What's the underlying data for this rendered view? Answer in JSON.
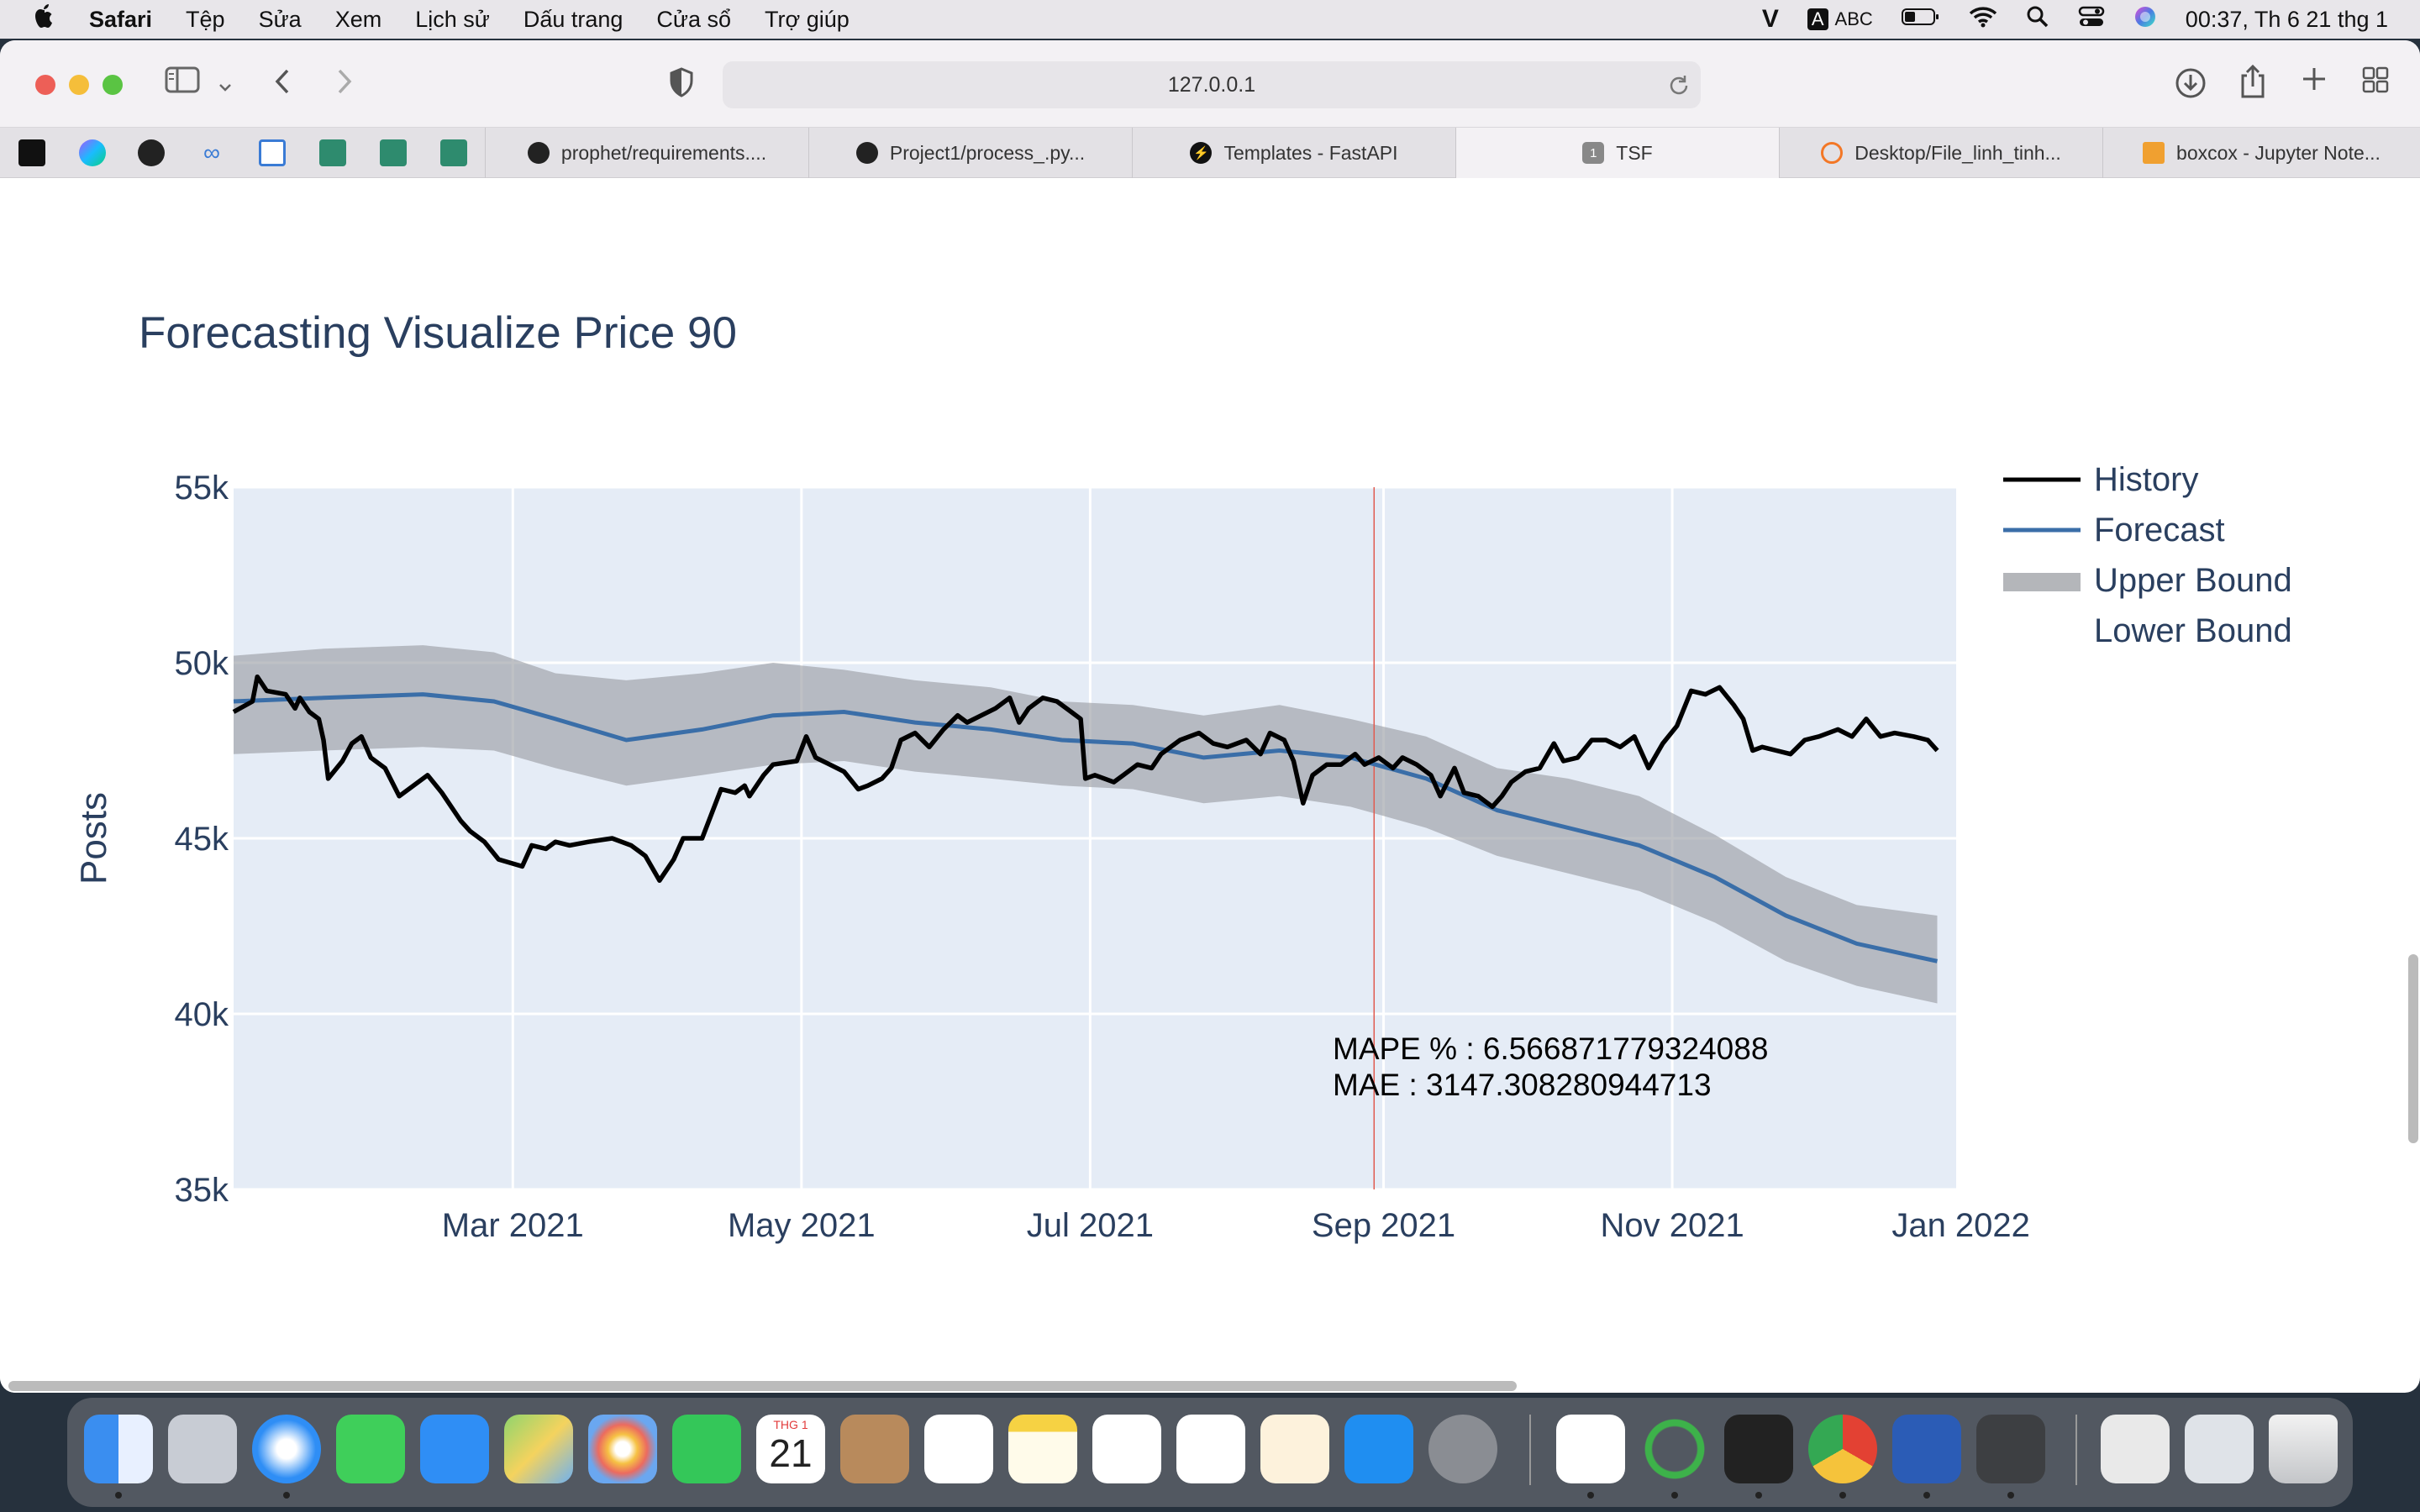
{
  "menubar": {
    "app": "Safari",
    "items": [
      "Tệp",
      "Sửa",
      "Xem",
      "Lịch sử",
      "Dấu trang",
      "Cửa sổ",
      "Trợ giúp"
    ],
    "input_source": "ABC",
    "clock": "00:37, Th 6 21 thg 1"
  },
  "browser": {
    "url": "127.0.0.1",
    "tabs": [
      {
        "label": "prophet/requirements....",
        "icon": "github-icon"
      },
      {
        "label": "Project1/process_.py...",
        "icon": "github-icon"
      },
      {
        "label": "Templates - FastAPI",
        "icon": "fastapi-icon"
      },
      {
        "label": "TSF",
        "icon": "number-badge-icon",
        "badge": "1"
      },
      {
        "label": "Desktop/File_linh_tinh...",
        "icon": "jupyter-icon"
      },
      {
        "label": "boxcox - Jupyter Note...",
        "icon": "notebook-icon"
      }
    ]
  },
  "dock": {
    "calendar_month": "THG 1",
    "calendar_day": "21"
  },
  "chart_data": {
    "type": "line",
    "title": "Forecasting Visualize Price 90",
    "xlabel": "",
    "ylabel": "Posts",
    "ylim": [
      35000,
      55000
    ],
    "xlim": [
      "2021-01-01",
      "2021-12-31"
    ],
    "y_ticks": [
      {
        "value": 55000,
        "label": "55k"
      },
      {
        "value": 50000,
        "label": "50k"
      },
      {
        "value": 45000,
        "label": "45k"
      },
      {
        "value": 40000,
        "label": "40k"
      },
      {
        "value": 35000,
        "label": "35k"
      }
    ],
    "x_ticks": [
      {
        "value": "2021-03-01",
        "label": "Mar 2021"
      },
      {
        "value": "2021-05-01",
        "label": "May 2021"
      },
      {
        "value": "2021-07-01",
        "label": "Jul 2021"
      },
      {
        "value": "2021-09-01",
        "label": "Sep 2021"
      },
      {
        "value": "2021-11-01",
        "label": "Nov 2021"
      },
      {
        "value": "2022-01-01",
        "label": "Jan 2022"
      }
    ],
    "grid": true,
    "legend_position": "right",
    "split_date": "2021-08-30",
    "split_color": "#e05a4f",
    "series": [
      {
        "name": "History",
        "color": "#000000",
        "points": [
          [
            "2021-01-01",
            48600
          ],
          [
            "2021-01-05",
            48900
          ],
          [
            "2021-01-06",
            49600
          ],
          [
            "2021-01-08",
            49200
          ],
          [
            "2021-01-12",
            49100
          ],
          [
            "2021-01-14",
            48700
          ],
          [
            "2021-01-15",
            49000
          ],
          [
            "2021-01-17",
            48600
          ],
          [
            "2021-01-19",
            48400
          ],
          [
            "2021-01-20",
            47800
          ],
          [
            "2021-01-21",
            46700
          ],
          [
            "2021-01-24",
            47200
          ],
          [
            "2021-01-26",
            47700
          ],
          [
            "2021-01-28",
            47900
          ],
          [
            "2021-01-30",
            47300
          ],
          [
            "2021-02-02",
            47000
          ],
          [
            "2021-02-05",
            46200
          ],
          [
            "2021-02-08",
            46500
          ],
          [
            "2021-02-11",
            46800
          ],
          [
            "2021-02-14",
            46300
          ],
          [
            "2021-02-18",
            45500
          ],
          [
            "2021-02-20",
            45200
          ],
          [
            "2021-02-23",
            44900
          ],
          [
            "2021-02-26",
            44400
          ],
          [
            "2021-03-03",
            44200
          ],
          [
            "2021-03-05",
            44800
          ],
          [
            "2021-03-08",
            44700
          ],
          [
            "2021-03-10",
            44900
          ],
          [
            "2021-03-13",
            44800
          ],
          [
            "2021-03-17",
            44900
          ],
          [
            "2021-03-22",
            45000
          ],
          [
            "2021-03-26",
            44800
          ],
          [
            "2021-03-29",
            44500
          ],
          [
            "2021-04-01",
            43800
          ],
          [
            "2021-04-04",
            44400
          ],
          [
            "2021-04-06",
            45000
          ],
          [
            "2021-04-10",
            45000
          ],
          [
            "2021-04-14",
            46400
          ],
          [
            "2021-04-17",
            46300
          ],
          [
            "2021-04-19",
            46500
          ],
          [
            "2021-04-20",
            46200
          ],
          [
            "2021-04-23",
            46800
          ],
          [
            "2021-04-25",
            47100
          ],
          [
            "2021-04-30",
            47200
          ],
          [
            "2021-05-02",
            47900
          ],
          [
            "2021-05-04",
            47300
          ],
          [
            "2021-05-07",
            47100
          ],
          [
            "2021-05-10",
            46900
          ],
          [
            "2021-05-13",
            46400
          ],
          [
            "2021-05-15",
            46500
          ],
          [
            "2021-05-18",
            46700
          ],
          [
            "2021-05-20",
            47000
          ],
          [
            "2021-05-22",
            47800
          ],
          [
            "2021-05-25",
            48000
          ],
          [
            "2021-05-28",
            47600
          ],
          [
            "2021-05-31",
            48100
          ],
          [
            "2021-06-03",
            48500
          ],
          [
            "2021-06-05",
            48300
          ],
          [
            "2021-06-08",
            48500
          ],
          [
            "2021-06-11",
            48700
          ],
          [
            "2021-06-14",
            49000
          ],
          [
            "2021-06-16",
            48300
          ],
          [
            "2021-06-18",
            48700
          ],
          [
            "2021-06-21",
            49000
          ],
          [
            "2021-06-24",
            48900
          ],
          [
            "2021-06-27",
            48600
          ],
          [
            "2021-06-29",
            48400
          ],
          [
            "2021-06-30",
            46700
          ],
          [
            "2021-07-02",
            46800
          ],
          [
            "2021-07-04",
            46700
          ],
          [
            "2021-07-06",
            46600
          ],
          [
            "2021-07-08",
            46800
          ],
          [
            "2021-07-11",
            47100
          ],
          [
            "2021-07-14",
            47000
          ],
          [
            "2021-07-16",
            47400
          ],
          [
            "2021-07-18",
            47600
          ],
          [
            "2021-07-20",
            47800
          ],
          [
            "2021-07-24",
            48000
          ],
          [
            "2021-07-27",
            47700
          ],
          [
            "2021-07-30",
            47600
          ],
          [
            "2021-08-03",
            47800
          ],
          [
            "2021-08-06",
            47400
          ],
          [
            "2021-08-08",
            48000
          ],
          [
            "2021-08-11",
            47800
          ],
          [
            "2021-08-13",
            47200
          ],
          [
            "2021-08-15",
            46000
          ],
          [
            "2021-08-17",
            46800
          ],
          [
            "2021-08-20",
            47100
          ],
          [
            "2021-08-23",
            47100
          ],
          [
            "2021-08-26",
            47400
          ],
          [
            "2021-08-28",
            47100
          ],
          [
            "2021-08-31",
            47300
          ],
          [
            "2021-09-03",
            47000
          ],
          [
            "2021-09-05",
            47300
          ],
          [
            "2021-09-08",
            47100
          ],
          [
            "2021-09-11",
            46800
          ],
          [
            "2021-09-13",
            46200
          ],
          [
            "2021-09-16",
            47000
          ],
          [
            "2021-09-18",
            46300
          ],
          [
            "2021-09-21",
            46200
          ],
          [
            "2021-09-24",
            45900
          ],
          [
            "2021-09-26",
            46200
          ],
          [
            "2021-09-28",
            46600
          ],
          [
            "2021-10-01",
            46900
          ],
          [
            "2021-10-04",
            47000
          ],
          [
            "2021-10-07",
            47700
          ],
          [
            "2021-10-09",
            47200
          ],
          [
            "2021-10-12",
            47300
          ],
          [
            "2021-10-15",
            47800
          ],
          [
            "2021-10-18",
            47800
          ],
          [
            "2021-10-21",
            47600
          ],
          [
            "2021-10-24",
            47900
          ],
          [
            "2021-10-27",
            47000
          ],
          [
            "2021-10-30",
            47700
          ],
          [
            "2021-11-02",
            48200
          ],
          [
            "2021-11-05",
            49200
          ],
          [
            "2021-11-08",
            49100
          ],
          [
            "2021-11-11",
            49300
          ],
          [
            "2021-11-14",
            48800
          ],
          [
            "2021-11-16",
            48400
          ],
          [
            "2021-11-18",
            47500
          ],
          [
            "2021-11-20",
            47600
          ],
          [
            "2021-11-23",
            47500
          ],
          [
            "2021-11-26",
            47400
          ],
          [
            "2021-11-29",
            47800
          ],
          [
            "2021-12-02",
            47900
          ],
          [
            "2021-12-06",
            48100
          ],
          [
            "2021-12-09",
            47900
          ],
          [
            "2021-12-12",
            48400
          ],
          [
            "2021-12-15",
            47900
          ],
          [
            "2021-12-18",
            48000
          ],
          [
            "2021-12-22",
            47900
          ],
          [
            "2021-12-25",
            47800
          ],
          [
            "2021-12-27",
            47500
          ]
        ]
      },
      {
        "name": "Forecast",
        "color": "#3a6ea8",
        "points": [
          [
            "2021-01-01",
            48900
          ],
          [
            "2021-01-20",
            49000
          ],
          [
            "2021-02-10",
            49100
          ],
          [
            "2021-02-25",
            48900
          ],
          [
            "2021-03-10",
            48400
          ],
          [
            "2021-03-25",
            47800
          ],
          [
            "2021-04-10",
            48100
          ],
          [
            "2021-04-25",
            48500
          ],
          [
            "2021-05-10",
            48600
          ],
          [
            "2021-05-25",
            48300
          ],
          [
            "2021-06-10",
            48100
          ],
          [
            "2021-06-25",
            47800
          ],
          [
            "2021-07-10",
            47700
          ],
          [
            "2021-07-25",
            47300
          ],
          [
            "2021-08-10",
            47500
          ],
          [
            "2021-08-25",
            47300
          ],
          [
            "2021-09-10",
            46700
          ],
          [
            "2021-09-25",
            45800
          ],
          [
            "2021-10-10",
            45300
          ],
          [
            "2021-10-25",
            44800
          ],
          [
            "2021-11-10",
            43900
          ],
          [
            "2021-11-25",
            42800
          ],
          [
            "2021-12-10",
            42000
          ],
          [
            "2021-12-27",
            41500
          ]
        ]
      },
      {
        "name": "Upper Bound",
        "color": "#aaaaaa",
        "points": [
          [
            "2021-01-01",
            50200
          ],
          [
            "2021-01-20",
            50400
          ],
          [
            "2021-02-10",
            50500
          ],
          [
            "2021-02-25",
            50300
          ],
          [
            "2021-03-10",
            49700
          ],
          [
            "2021-03-25",
            49500
          ],
          [
            "2021-04-10",
            49700
          ],
          [
            "2021-04-25",
            50000
          ],
          [
            "2021-05-10",
            49800
          ],
          [
            "2021-05-25",
            49500
          ],
          [
            "2021-06-10",
            49300
          ],
          [
            "2021-06-25",
            48900
          ],
          [
            "2021-07-10",
            48800
          ],
          [
            "2021-07-25",
            48500
          ],
          [
            "2021-08-10",
            48800
          ],
          [
            "2021-08-25",
            48400
          ],
          [
            "2021-09-10",
            47900
          ],
          [
            "2021-09-25",
            47000
          ],
          [
            "2021-10-10",
            46700
          ],
          [
            "2021-10-25",
            46200
          ],
          [
            "2021-11-10",
            45100
          ],
          [
            "2021-11-25",
            43900
          ],
          [
            "2021-12-10",
            43100
          ],
          [
            "2021-12-27",
            42800
          ]
        ]
      },
      {
        "name": "Lower Bound",
        "color": "#aaaaaa",
        "points": [
          [
            "2021-01-01",
            47400
          ],
          [
            "2021-01-20",
            47500
          ],
          [
            "2021-02-10",
            47600
          ],
          [
            "2021-02-25",
            47500
          ],
          [
            "2021-03-10",
            47000
          ],
          [
            "2021-03-25",
            46500
          ],
          [
            "2021-04-10",
            46800
          ],
          [
            "2021-04-25",
            47100
          ],
          [
            "2021-05-10",
            47200
          ],
          [
            "2021-05-25",
            46900
          ],
          [
            "2021-06-10",
            46700
          ],
          [
            "2021-06-25",
            46500
          ],
          [
            "2021-07-10",
            46400
          ],
          [
            "2021-07-25",
            46000
          ],
          [
            "2021-08-10",
            46200
          ],
          [
            "2021-08-25",
            45900
          ],
          [
            "2021-09-10",
            45300
          ],
          [
            "2021-09-25",
            44500
          ],
          [
            "2021-10-10",
            44000
          ],
          [
            "2021-10-25",
            43500
          ],
          [
            "2021-11-10",
            42600
          ],
          [
            "2021-11-25",
            41500
          ],
          [
            "2021-12-10",
            40800
          ],
          [
            "2021-12-27",
            40300
          ]
        ]
      }
    ],
    "legend": [
      "History",
      "Forecast",
      "Upper Bound",
      "Lower Bound"
    ],
    "annotation": {
      "mape": "MAPE % :  6.566871779324088",
      "mae": "MAE :  3147.308280944713"
    },
    "plot_bg": "#e5ecf6"
  }
}
